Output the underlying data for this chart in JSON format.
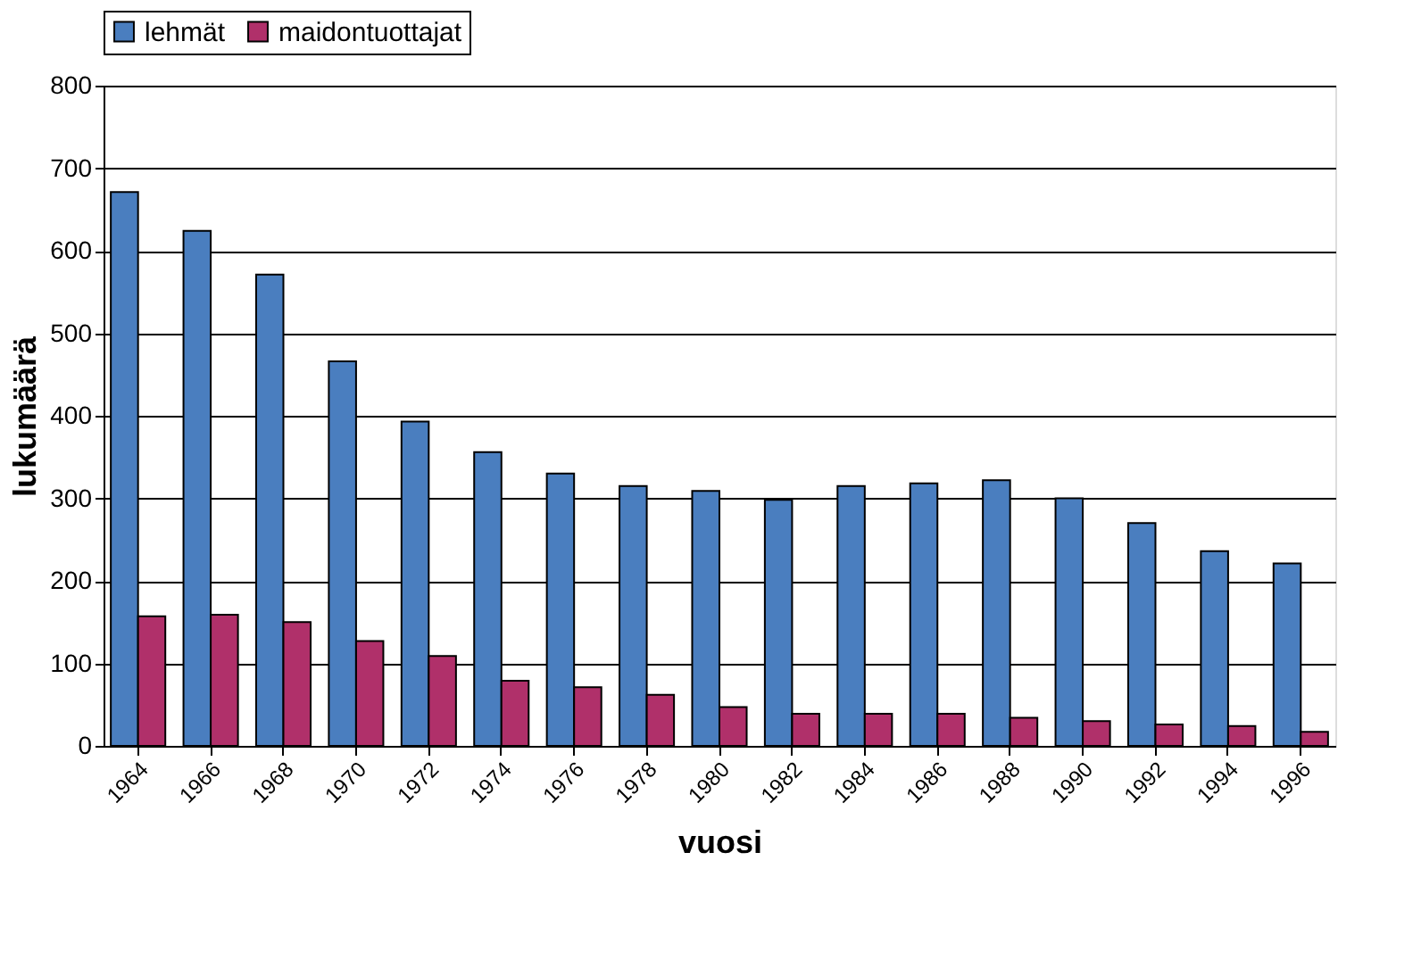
{
  "chart_data": {
    "type": "bar",
    "xlabel": "vuosi",
    "ylabel": "lukumäärä",
    "categories": [
      "1964",
      "1966",
      "1968",
      "1970",
      "1972",
      "1974",
      "1976",
      "1978",
      "1980",
      "1982",
      "1984",
      "1986",
      "1988",
      "1990",
      "1992",
      "1994",
      "1996"
    ],
    "series": [
      {
        "name": "lehmät",
        "color": "#4a7ebf",
        "values": [
          671,
          624,
          571,
          466,
          393,
          356,
          330,
          315,
          309,
          298,
          315,
          318,
          322,
          300,
          270,
          236,
          221
        ]
      },
      {
        "name": "maidontuottajat",
        "color": "#b0306a",
        "values": [
          157,
          159,
          150,
          127,
          109,
          79,
          71,
          62,
          47,
          39,
          39,
          39,
          34,
          30,
          26,
          24,
          17
        ]
      }
    ],
    "ylim": [
      0,
      800
    ],
    "yticks": [
      0,
      100,
      200,
      300,
      400,
      500,
      600,
      700,
      800
    ],
    "grid": "y",
    "legend": "top"
  }
}
